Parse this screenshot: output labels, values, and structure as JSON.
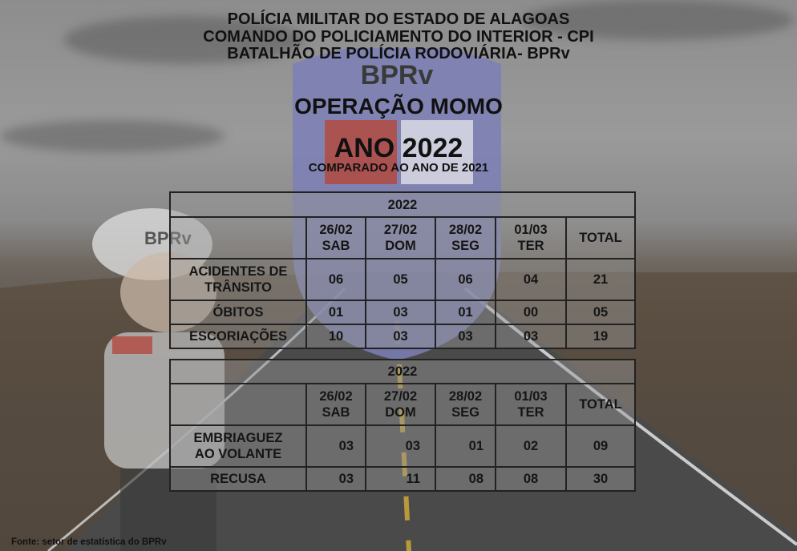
{
  "header": {
    "line1": "POLÍCIA MILITAR DO ESTADO DE ALAGOAS",
    "line2": "COMANDO DO POLICIAMENTO DO INTERIOR - CPI",
    "line3": "BATALHÃO DE POLÍCIA RODOVIÁRIA- BPRv"
  },
  "title": "OPERAÇÃO MOMO",
  "year": "ANO 2022",
  "subtitle": "COMPARADO AO ANO DE 2021",
  "logos": {
    "emblem_text": "BPRv",
    "mascot_cap_text": "BPRv"
  },
  "table1": {
    "year": "2022",
    "columns": [
      {
        "date": "26/02",
        "day": "SAB"
      },
      {
        "date": "27/02",
        "day": "DOM"
      },
      {
        "date": "28/02",
        "day": "SEG"
      },
      {
        "date": "01/03",
        "day": "TER"
      }
    ],
    "total_label": "TOTAL",
    "rows": [
      {
        "label1": "ACIDENTES DE",
        "label2": "TRÂNSITO",
        "values": [
          "06",
          "05",
          "06",
          "04"
        ],
        "total": "21"
      },
      {
        "label1": "ÓBITOS",
        "values": [
          "01",
          "03",
          "01",
          "00"
        ],
        "total": "05"
      },
      {
        "label1": "ESCORIAÇÕES",
        "values": [
          "10",
          "03",
          "03",
          "03"
        ],
        "total": "19"
      }
    ]
  },
  "table2": {
    "year": "2022",
    "columns": [
      {
        "date": "26/02",
        "day": "SAB"
      },
      {
        "date": "27/02",
        "day": "DOM"
      },
      {
        "date": "28/02",
        "day": "SEG"
      },
      {
        "date": "01/03",
        "day": "TER"
      }
    ],
    "total_label": "TOTAL",
    "rows": [
      {
        "label1": "EMBRIAGUEZ",
        "label2": "AO VOLANTE",
        "values": [
          "03",
          "03",
          "01",
          "02"
        ],
        "total": "09"
      },
      {
        "label1": "RECUSA",
        "values": [
          "03",
          "11",
          "08",
          "08"
        ],
        "total": "30"
      }
    ]
  },
  "footer": "Fonte: setor de estatística do BPRv"
}
